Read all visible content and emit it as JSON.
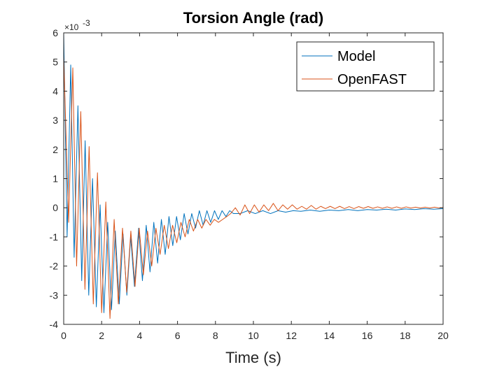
{
  "chart_data": {
    "type": "line",
    "title": "Torsion Angle (rad)",
    "xlabel": "Time (s)",
    "ylabel": "",
    "xlim": [
      0,
      20
    ],
    "ylim": [
      -0.004,
      0.006
    ],
    "xticks": [
      0,
      2,
      4,
      6,
      8,
      10,
      12,
      14,
      16,
      18,
      20
    ],
    "yticks": [
      -4,
      -3,
      -2,
      -1,
      0,
      1,
      2,
      3,
      4,
      5,
      6
    ],
    "y_multiplier": "×10",
    "y_multiplier_exponent": "-3",
    "legend_location": "top-right",
    "grid": false,
    "series": [
      {
        "name": "Model",
        "color": "#0072BD",
        "x": [
          0,
          0.18,
          0.37,
          0.55,
          0.75,
          0.95,
          1.13,
          1.32,
          1.52,
          1.72,
          1.92,
          2.12,
          2.32,
          2.52,
          2.72,
          2.93,
          3.13,
          3.33,
          3.53,
          3.73,
          3.95,
          4.15,
          4.35,
          4.55,
          4.75,
          4.95,
          5.15,
          5.35,
          5.55,
          5.75,
          5.95,
          6.15,
          6.35,
          6.55,
          6.75,
          6.95,
          7.15,
          7.35,
          7.55,
          7.75,
          7.95,
          8.15,
          8.35,
          8.55,
          8.75,
          8.95,
          9.3,
          9.7,
          10.1,
          10.5,
          10.9,
          11.3,
          11.7,
          12.1,
          12.5,
          13,
          13.5,
          14,
          14.5,
          15,
          15.5,
          16,
          16.5,
          17,
          17.5,
          18,
          18.5,
          19,
          19.5,
          20
        ],
        "y": [
          0.006,
          -0.001,
          0.0049,
          -0.0017,
          0.0035,
          -0.0025,
          0.0023,
          -0.003,
          0.001,
          -0.0034,
          0.0001,
          -0.0036,
          -0.0005,
          -0.0035,
          -0.0008,
          -0.0033,
          -0.0009,
          -0.003,
          -0.001,
          -0.0027,
          -0.0007,
          -0.0025,
          -0.0006,
          -0.0022,
          -0.0005,
          -0.0019,
          -0.0004,
          -0.0016,
          -0.0003,
          -0.0013,
          -0.0003,
          -0.0011,
          -0.0002,
          -0.0009,
          -0.0002,
          -0.0007,
          -0.0001,
          -0.0006,
          -0.0001,
          -0.0005,
          -0.0001,
          -0.0004,
          -0.0001,
          -0.0003,
          -0.0001,
          -0.0002,
          -0.0002,
          -0.0001,
          -0.0002,
          -0.0001,
          -0.0002,
          -0.0001,
          -0.00015,
          -0.0001,
          -0.00012,
          -8e-05,
          -0.00012,
          -8e-05,
          -0.0001,
          -6e-05,
          -0.0001,
          -6e-05,
          -8e-05,
          -5e-05,
          -8e-05,
          -4e-05,
          -6e-05,
          -3e-05,
          -5e-05,
          -3e-05
        ]
      },
      {
        "name": "OpenFAST",
        "color": "#D95319",
        "x": [
          0,
          0.26,
          0.48,
          0.68,
          0.9,
          1.12,
          1.34,
          1.56,
          1.78,
          2.0,
          2.22,
          2.44,
          2.66,
          2.88,
          3.1,
          3.32,
          3.54,
          3.76,
          3.98,
          4.2,
          4.42,
          4.64,
          4.86,
          5.08,
          5.3,
          5.52,
          5.74,
          5.96,
          6.18,
          6.4,
          6.62,
          6.84,
          7.06,
          7.28,
          7.5,
          7.72,
          7.94,
          8.16,
          8.38,
          8.6,
          8.8,
          9.05,
          9.3,
          9.55,
          9.8,
          10.05,
          10.3,
          10.55,
          10.8,
          11.05,
          11.3,
          11.55,
          11.8,
          12.05,
          12.3,
          12.55,
          12.8,
          13.05,
          13.3,
          13.55,
          13.8,
          14.05,
          14.3,
          14.55,
          14.8,
          15.05,
          15.3,
          15.55,
          15.8,
          16.05,
          16.3,
          16.55,
          16.8,
          17.05,
          17.3,
          17.55,
          17.8,
          18.05,
          18.3,
          18.55,
          18.8,
          19.05,
          19.3,
          19.55,
          19.8,
          20
        ],
        "y": [
          0.0052,
          -0.0005,
          0.0048,
          -0.002,
          0.0033,
          -0.0028,
          0.0021,
          -0.0033,
          0.0012,
          -0.0036,
          0.0002,
          -0.0038,
          -0.0004,
          -0.0033,
          -0.0007,
          -0.0029,
          -0.0008,
          -0.0027,
          -0.0007,
          -0.0023,
          -0.0008,
          -0.002,
          -0.0007,
          -0.0016,
          -0.0006,
          -0.0014,
          -0.0006,
          -0.0012,
          -0.0005,
          -0.001,
          -0.0004,
          -0.0008,
          -0.0004,
          -0.0007,
          -0.0004,
          -0.0006,
          -0.0004,
          -0.0005,
          -0.0004,
          -0.0003,
          -0.0002,
          0.0,
          -0.00025,
          0.0001,
          -0.0002,
          0.0001,
          -0.00015,
          0.0001,
          -0.0001,
          0.00015,
          -0.0001,
          0.0001,
          -5e-05,
          0.0001,
          -5e-05,
          5e-05,
          -5e-05,
          8e-05,
          -5e-05,
          5e-05,
          -3e-05,
          5e-05,
          -3e-05,
          5e-05,
          -3e-05,
          4e-05,
          -3e-05,
          4e-05,
          -2e-05,
          4e-05,
          -2e-05,
          3e-05,
          -2e-05,
          3e-05,
          -2e-05,
          3e-05,
          -2e-05,
          3e-05,
          -1e-05,
          2e-05,
          -1e-05,
          2e-05,
          -1e-05,
          2e-05,
          -1e-05,
          1e-05
        ]
      }
    ]
  }
}
